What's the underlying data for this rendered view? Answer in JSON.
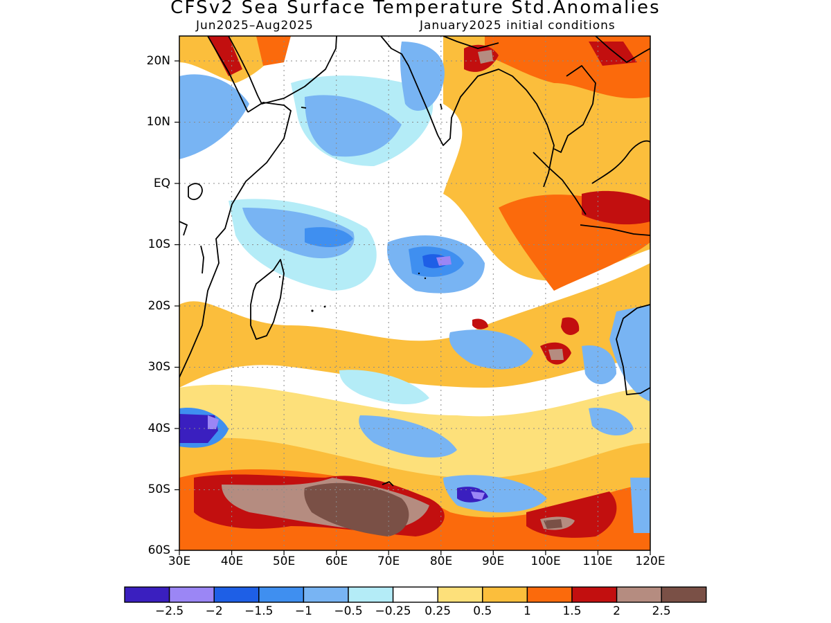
{
  "title": "CFSv2 Sea Surface Temperature Std.Anomalies",
  "subtitle_left": "Jun2025–Aug2025",
  "subtitle_right": "January2025 initial conditions",
  "colors": {
    "c_m3": "#3a1fbf",
    "c_m25": "#9b86f5",
    "c_m2": "#1e5fe6",
    "c_m15": "#3f8ff0",
    "c_m1": "#78b4f3",
    "c_m05": "#b4ecf7",
    "c_0": "#ffffff",
    "c_p025": "#fde07a",
    "c_p05": "#fbbe3c",
    "c_p1": "#fb6a0c",
    "c_p15": "#c20f0f",
    "c_p2": "#b58c80",
    "c_p25": "#7a5046"
  },
  "chart_data": {
    "type": "heatmap",
    "title": "CFSv2 Sea Surface Temperature Std.Anomalies",
    "subtitle": [
      "Jun2025–Aug2025",
      "January2025 initial conditions"
    ],
    "xlim": [
      30,
      120
    ],
    "ylim": [
      -60,
      24
    ],
    "x_ticks": [
      "30E",
      "40E",
      "50E",
      "60E",
      "70E",
      "80E",
      "90E",
      "100E",
      "110E",
      "120E"
    ],
    "y_ticks": [
      "20N",
      "10N",
      "EQ",
      "10S",
      "20S",
      "30S",
      "40S",
      "50S",
      "60S"
    ],
    "grid": true,
    "colorbar_labels": [
      "−2.5",
      "−2",
      "−1.5",
      "−1",
      "−0.5",
      "−0.25",
      "0.25",
      "0.5",
      "1",
      "1.5",
      "2",
      "2.5"
    ]
  }
}
